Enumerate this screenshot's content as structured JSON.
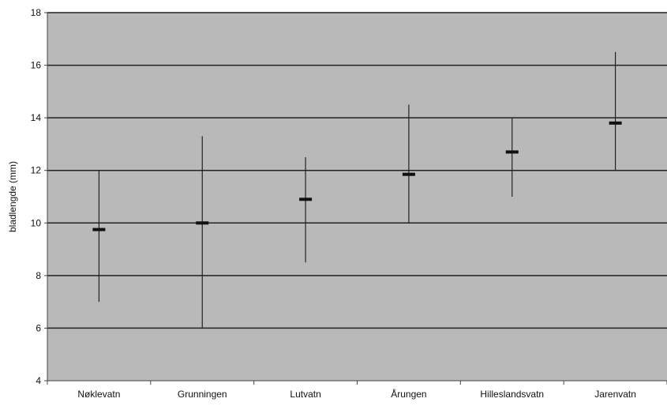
{
  "chart_data": {
    "type": "range",
    "categories": [
      "Nøklevatn",
      "Grunningen",
      "Lutvatn",
      "Årungen",
      "Hilleslandsvatn",
      "Jarenvatn"
    ],
    "series": [
      {
        "mean": [
          9.75,
          10.0,
          10.9,
          11.85,
          12.7,
          13.8
        ],
        "min": [
          7.0,
          6.0,
          8.5,
          10.0,
          11.0,
          12.0
        ],
        "max": [
          12.0,
          13.3,
          12.5,
          14.5,
          14.0,
          16.5
        ]
      }
    ],
    "xlabel": "",
    "ylabel": "bladlengde (mm)",
    "ylim": [
      4,
      18
    ],
    "yticks": [
      4,
      6,
      8,
      10,
      12,
      14,
      16,
      18
    ],
    "grid": true,
    "legend": "none",
    "colors": {
      "plot_background": "#b9b9b9",
      "gridline": "#222222",
      "axis": "#444444",
      "range_line": "#222222",
      "mean_marker": "#111111"
    }
  }
}
